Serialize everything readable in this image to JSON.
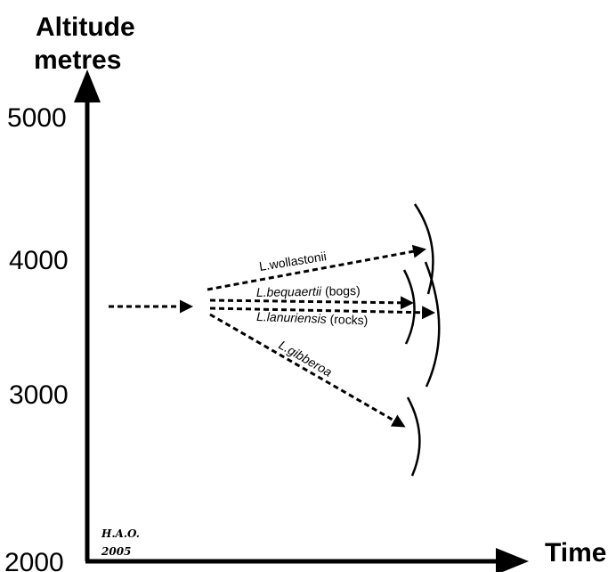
{
  "y_axis": {
    "title_line1": "Altitude",
    "title_line2": "metres",
    "ticks": [
      "5000",
      "4000",
      "3000",
      "2000"
    ]
  },
  "x_axis": {
    "title": "Time"
  },
  "species": [
    {
      "genus": "L.",
      "name": "wollastonii",
      "note": ""
    },
    {
      "genus": "L.",
      "name": "bequaertii",
      "note": " (bogs)"
    },
    {
      "genus": "L.",
      "name": "lanuriensis",
      "note": " (rocks)"
    },
    {
      "genus": "L.",
      "name": "gibberoa",
      "note": ""
    }
  ],
  "signature": {
    "line1": "H.A.O.",
    "line2": "2005"
  }
}
